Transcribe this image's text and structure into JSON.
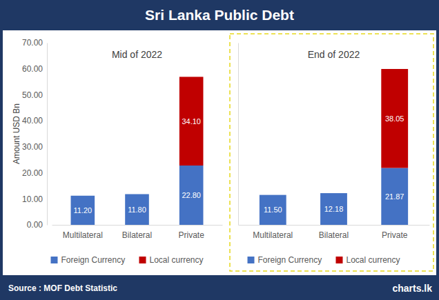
{
  "title": "Sri Lanka Public Debt",
  "source": "Source : MOF Debt Statistic",
  "logo": "charts.lk",
  "chart_data": [
    {
      "type": "bar",
      "stacked": true,
      "data_labels": true,
      "grid": false,
      "legend": "bottom",
      "title": "Mid of 2022",
      "y_label": "Amount USD Bn",
      "categories": [
        "Multilateral",
        "Bilateral",
        "Private"
      ],
      "ylim": [
        0,
        70
      ],
      "yticks": [
        {
          "value": 0,
          "label": "0.00"
        },
        {
          "value": 10,
          "label": "10.00"
        },
        {
          "value": 20,
          "label": "20.00"
        },
        {
          "value": 30,
          "label": "30.00"
        },
        {
          "value": 40,
          "label": "40.00"
        },
        {
          "value": 50,
          "label": "50.00"
        },
        {
          "value": 60,
          "label": "60.00"
        },
        {
          "value": 70,
          "label": "70.00"
        }
      ],
      "series": [
        {
          "name": "Foreign Currency",
          "color": "#4472c4",
          "values": [
            11.2,
            11.8,
            22.8
          ],
          "value_labels": [
            "11.20",
            "11.80",
            "22.80"
          ]
        },
        {
          "name": "Local currency",
          "color": "#c00000",
          "values": [
            null,
            null,
            34.1
          ],
          "value_labels": [
            null,
            null,
            "34.10"
          ]
        }
      ]
    },
    {
      "type": "bar",
      "stacked": true,
      "data_labels": true,
      "grid": false,
      "legend": "bottom",
      "title": "End of 2022",
      "tick_labels": "x",
      "categories": [
        "Multilateral",
        "Bilateral",
        "Private"
      ],
      "ylim": [
        0,
        70
      ],
      "series": [
        {
          "name": "Foreign Currency",
          "color": "#4472c4",
          "values": [
            11.5,
            12.18,
            21.87
          ],
          "value_labels": [
            "11.50",
            "12.18",
            "21.87"
          ]
        },
        {
          "name": "Local currency",
          "color": "#c00000",
          "values": [
            null,
            null,
            38.05
          ],
          "value_labels": [
            null,
            null,
            "38.05"
          ]
        }
      ]
    }
  ]
}
